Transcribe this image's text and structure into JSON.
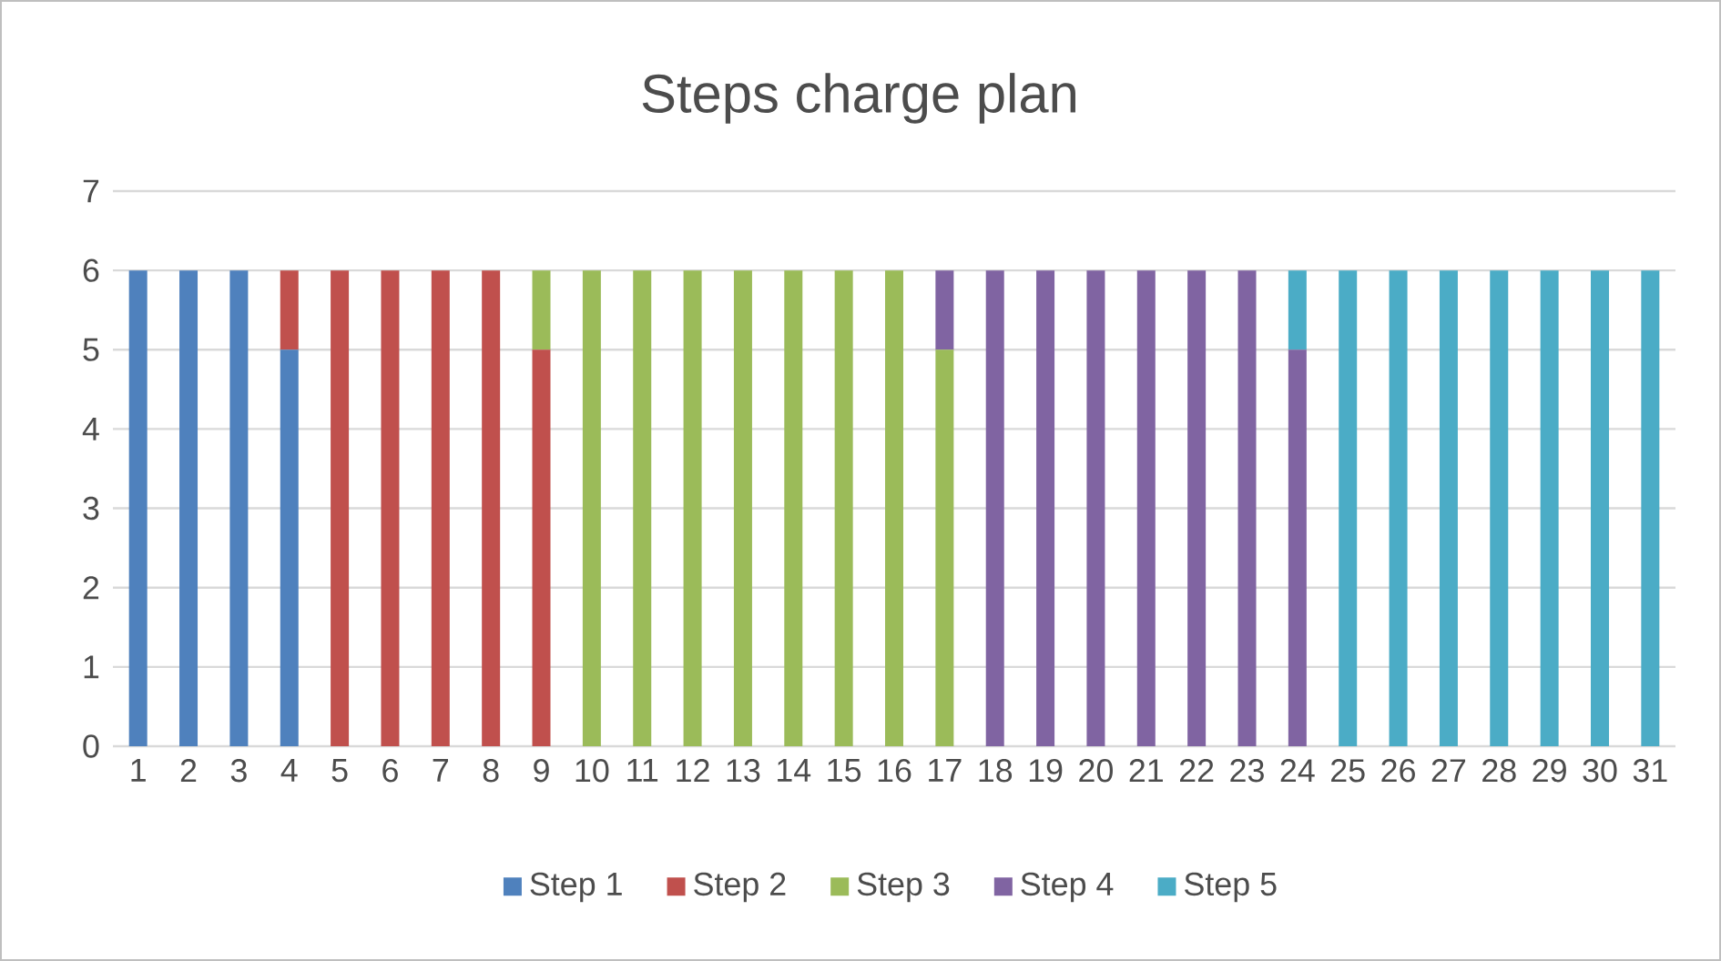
{
  "chart_data": {
    "type": "bar",
    "title": "Steps charge plan",
    "stacked": true,
    "grid": "y",
    "legend": "bottom",
    "categories": [
      "1",
      "2",
      "3",
      "4",
      "5",
      "6",
      "7",
      "8",
      "9",
      "10",
      "11",
      "12",
      "13",
      "14",
      "15",
      "16",
      "17",
      "18",
      "19",
      "20",
      "21",
      "22",
      "23",
      "24",
      "25",
      "26",
      "27",
      "28",
      "29",
      "30",
      "31"
    ],
    "ylim": [
      0,
      7
    ],
    "yticks": [
      0,
      1,
      2,
      3,
      4,
      5,
      6,
      7
    ],
    "series": [
      {
        "name": "Step 1",
        "color": "#4f81bd",
        "values": [
          6,
          6,
          6,
          5,
          null,
          null,
          null,
          null,
          null,
          null,
          null,
          null,
          null,
          null,
          null,
          null,
          null,
          null,
          null,
          null,
          null,
          null,
          null,
          null,
          null,
          null,
          null,
          null,
          null,
          null,
          null
        ]
      },
      {
        "name": "Step 2",
        "color": "#c0504d",
        "values": [
          null,
          null,
          null,
          1,
          6,
          6,
          6,
          6,
          5,
          null,
          null,
          null,
          null,
          null,
          null,
          null,
          null,
          null,
          null,
          null,
          null,
          null,
          null,
          null,
          null,
          null,
          null,
          null,
          null,
          null,
          null
        ]
      },
      {
        "name": "Step 3",
        "color": "#9bbb59",
        "values": [
          null,
          null,
          null,
          null,
          null,
          null,
          null,
          null,
          1,
          6,
          6,
          6,
          6,
          6,
          6,
          6,
          5,
          null,
          null,
          null,
          null,
          null,
          null,
          null,
          null,
          null,
          null,
          null,
          null,
          null,
          null
        ]
      },
      {
        "name": "Step 4",
        "color": "#8064a2",
        "values": [
          null,
          null,
          null,
          null,
          null,
          null,
          null,
          null,
          null,
          null,
          null,
          null,
          null,
          null,
          null,
          null,
          1,
          6,
          6,
          6,
          6,
          6,
          6,
          5,
          null,
          null,
          null,
          null,
          null,
          null,
          null
        ]
      },
      {
        "name": "Step 5",
        "color": "#4bacc6",
        "values": [
          null,
          null,
          null,
          null,
          null,
          null,
          null,
          null,
          null,
          null,
          null,
          null,
          null,
          null,
          null,
          null,
          null,
          null,
          null,
          null,
          null,
          null,
          null,
          1,
          6,
          6,
          6,
          6,
          6,
          6,
          6
        ]
      }
    ]
  }
}
